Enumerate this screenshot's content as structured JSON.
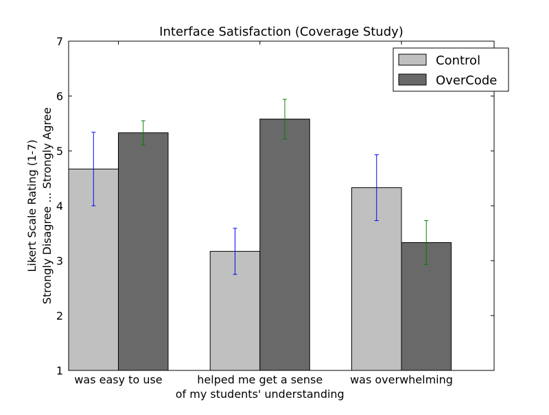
{
  "chart_data": {
    "type": "bar",
    "title": "Interface Satisfaction (Coverage Study)",
    "ylabel_lines": [
      "Likert Scale Rating (1-7)",
      "Strongly Disagree ... Strongly Agree"
    ],
    "xlabel": "",
    "ylim": [
      1,
      7
    ],
    "yticks": [
      "1",
      "2",
      "3",
      "4",
      "5",
      "6",
      "7"
    ],
    "grid": false,
    "legend_position": "top-right",
    "categories": [
      [
        "was easy to use"
      ],
      [
        "helped me get a sense",
        "of my students' understanding"
      ],
      [
        "was overwhelming"
      ]
    ],
    "series": [
      {
        "name": "Control",
        "color": "#c0c0c0",
        "error_color": "#0000ff",
        "values": [
          4.67,
          3.17,
          4.33
        ],
        "error": [
          0.67,
          0.42,
          0.6
        ]
      },
      {
        "name": "OverCode",
        "color": "#696969",
        "error_color": "#008000",
        "values": [
          5.33,
          5.58,
          3.33
        ],
        "error": [
          0.22,
          0.36,
          0.4
        ]
      }
    ]
  }
}
